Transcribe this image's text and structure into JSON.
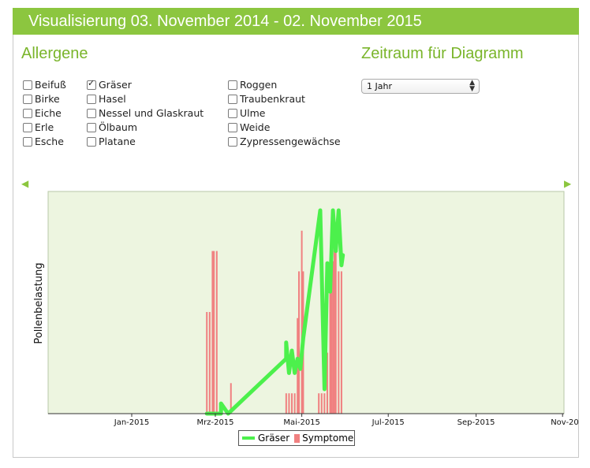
{
  "header": {
    "title": "Visualisierung 03. November 2014 - 02. November 2015"
  },
  "allergens": {
    "heading": "Allergene",
    "items": [
      {
        "label": "Beifuß",
        "checked": false
      },
      {
        "label": "Birke",
        "checked": false
      },
      {
        "label": "Eiche",
        "checked": false
      },
      {
        "label": "Erle",
        "checked": false
      },
      {
        "label": "Esche",
        "checked": false
      },
      {
        "label": "Gräser",
        "checked": true
      },
      {
        "label": "Hasel",
        "checked": false
      },
      {
        "label": "Nessel und Glaskraut",
        "checked": false
      },
      {
        "label": "Ölbaum",
        "checked": false
      },
      {
        "label": "Platane",
        "checked": false
      },
      {
        "label": "Roggen",
        "checked": false
      },
      {
        "label": "Traubenkraut",
        "checked": false
      },
      {
        "label": "Ulme",
        "checked": false
      },
      {
        "label": "Weide",
        "checked": false
      },
      {
        "label": "Zypressengewächse",
        "checked": false
      }
    ]
  },
  "period": {
    "heading": "Zeitraum für Diagramm",
    "selected": "1 Jahr"
  },
  "nav": {
    "prev_icon": "triangle-left-icon",
    "next_icon": "triangle-right-icon"
  },
  "colors": {
    "accent": "#8cc63f",
    "plot_bg": "#edf5e0",
    "line": "#4cf04c",
    "bars": "#f08080"
  },
  "chart_data": {
    "type": "line",
    "ylabel": "Pollenbelastung",
    "xlabel": "",
    "x_tick_labels": [
      "Jan-2015",
      "Mrz-2015",
      "Mai-2015",
      "Jul-2015",
      "Sep-2015",
      "Nov-20"
    ],
    "x_range": [
      "2014-11-03",
      "2015-11-02"
    ],
    "y_range": [
      0,
      100
    ],
    "grid": false,
    "legend": {
      "position": "bottom-center"
    },
    "series": [
      {
        "name": "Gräser",
        "type": "line",
        "points": [
          [
            "2015-02-23",
            0
          ],
          [
            "2015-03-05",
            0
          ],
          [
            "2015-03-05",
            5
          ],
          [
            "2015-03-10",
            0
          ],
          [
            "2015-04-20",
            27
          ],
          [
            "2015-04-20",
            35
          ],
          [
            "2015-04-22",
            20
          ],
          [
            "2015-04-24",
            31
          ],
          [
            "2015-04-26",
            20
          ],
          [
            "2015-04-28",
            27
          ],
          [
            "2015-04-30",
            22
          ],
          [
            "2015-05-02",
            37
          ],
          [
            "2015-05-14",
            100
          ],
          [
            "2015-05-17",
            12
          ],
          [
            "2015-05-19",
            74
          ],
          [
            "2015-05-21",
            60
          ],
          [
            "2015-05-23",
            100
          ],
          [
            "2015-05-25",
            80
          ],
          [
            "2015-05-27",
            100
          ],
          [
            "2015-05-29",
            73
          ],
          [
            "2015-05-30",
            78
          ]
        ]
      },
      {
        "name": "Symptome",
        "type": "bar",
        "points": [
          [
            "2015-02-23",
            50
          ],
          [
            "2015-02-25",
            50
          ],
          [
            "2015-02-27",
            80
          ],
          [
            "2015-02-28",
            80
          ],
          [
            "2015-03-02",
            80
          ],
          [
            "2015-03-12",
            15
          ],
          [
            "2015-04-20",
            10
          ],
          [
            "2015-04-22",
            10
          ],
          [
            "2015-04-24",
            10
          ],
          [
            "2015-04-26",
            10
          ],
          [
            "2015-04-28",
            47
          ],
          [
            "2015-04-29",
            70
          ],
          [
            "2015-05-01",
            90
          ],
          [
            "2015-05-02",
            70
          ],
          [
            "2015-05-13",
            10
          ],
          [
            "2015-05-15",
            10
          ],
          [
            "2015-05-17",
            10
          ],
          [
            "2015-05-19",
            30
          ],
          [
            "2015-05-21",
            70
          ],
          [
            "2015-05-22",
            75
          ],
          [
            "2015-05-23",
            75
          ],
          [
            "2015-05-24",
            90
          ],
          [
            "2015-05-25",
            80
          ],
          [
            "2015-05-27",
            70
          ],
          [
            "2015-05-29",
            70
          ]
        ]
      }
    ]
  }
}
